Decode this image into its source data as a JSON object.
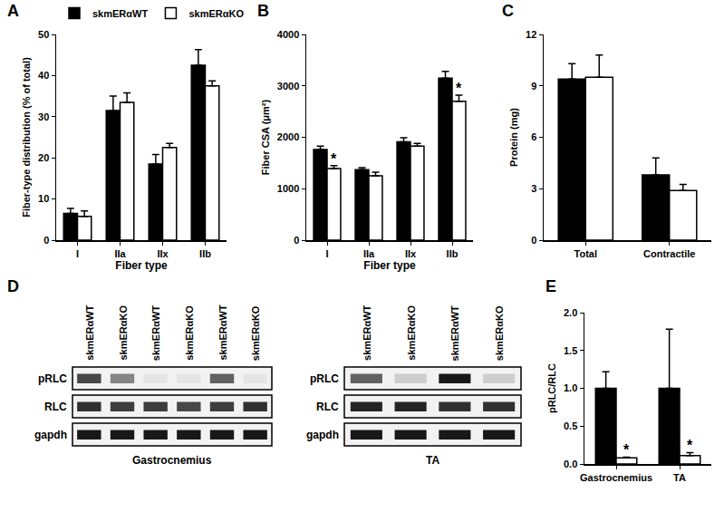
{
  "chart_data": [
    {
      "panel": "A",
      "type": "bar",
      "categories": [
        "I",
        "IIa",
        "IIx",
        "IIb"
      ],
      "x_label": "Fiber type",
      "y_label": "Fiber-type distribution (% of total)",
      "series": [
        {
          "name": "skmERαWT",
          "color": "#000000",
          "values": [
            6.5,
            31.5,
            18.5,
            42.5
          ],
          "errors": [
            1.2,
            3.5,
            2.3,
            3.8
          ]
        },
        {
          "name": "skmERαKO",
          "color": "#ffffff",
          "values": [
            5.8,
            33.5,
            22.5,
            37.5
          ],
          "errors": [
            1.3,
            2.3,
            1.0,
            1.2
          ]
        }
      ],
      "ylim": [
        0,
        50
      ],
      "yticks": [
        0,
        10,
        20,
        30,
        40,
        50
      ],
      "legend": "top left"
    },
    {
      "panel": "B",
      "type": "bar",
      "categories": [
        "I",
        "IIa",
        "IIx",
        "IIb"
      ],
      "x_label": "Fiber type",
      "y_label": "Fiber CSA (μm²)",
      "series": [
        {
          "name": "skmERαWT",
          "color": "#000000",
          "values": [
            1760,
            1370,
            1910,
            3150
          ],
          "errors": [
            70,
            40,
            80,
            130
          ]
        },
        {
          "name": "skmERαKO",
          "color": "#ffffff",
          "values": [
            1390,
            1250,
            1830,
            2700
          ],
          "errors": [
            60,
            70,
            50,
            120
          ]
        }
      ],
      "ylim": [
        0,
        4000
      ],
      "yticks": [
        0,
        1000,
        2000,
        3000,
        4000
      ],
      "annotations": [
        {
          "category": "I",
          "series": "skmERαKO",
          "text": "*"
        },
        {
          "category": "IIb",
          "series": "skmERαKO",
          "text": "*"
        }
      ]
    },
    {
      "panel": "C",
      "type": "bar",
      "categories": [
        "Total",
        "Contractile"
      ],
      "y_label": "Protein (mg)",
      "series": [
        {
          "name": "skmERαWT",
          "color": "#000000",
          "values": [
            9.4,
            3.8
          ],
          "errors": [
            0.9,
            1.0
          ]
        },
        {
          "name": "skmERαKO",
          "color": "#ffffff",
          "values": [
            9.5,
            2.9
          ],
          "errors": [
            1.3,
            0.35
          ]
        }
      ],
      "ylim": [
        0,
        12
      ],
      "yticks": [
        0,
        3,
        6,
        9,
        12
      ]
    },
    {
      "panel": "E",
      "type": "bar",
      "categories": [
        "Gastrocnemius",
        "TA"
      ],
      "y_label": "pRLC/RLC",
      "series": [
        {
          "name": "skmERαWT",
          "color": "#000000",
          "values": [
            1.0,
            1.0
          ],
          "errors": [
            0.22,
            0.78
          ]
        },
        {
          "name": "skmERαKO",
          "color": "#ffffff",
          "values": [
            0.08,
            0.11
          ],
          "errors": [
            0.01,
            0.04
          ]
        }
      ],
      "ylim": [
        0,
        2.0
      ],
      "yticks": [
        {
          "value": 0,
          "label": "0.0"
        },
        {
          "value": 0.5,
          "label": "0.5"
        },
        {
          "value": 1.0,
          "label": "1.0"
        },
        {
          "value": 1.5,
          "label": "1.5"
        },
        {
          "value": 2.0,
          "label": "2.0"
        }
      ],
      "annotations": [
        {
          "category": "Gastrocnemius",
          "series": "skmERαKO",
          "text": "*"
        },
        {
          "category": "TA",
          "series": "skmERαKO",
          "text": "*"
        }
      ]
    }
  ],
  "blots": {
    "panel": "D",
    "rows": [
      "pRLC",
      "RLC",
      "gapdh"
    ],
    "items": [
      {
        "label": "Gastrocnemius",
        "lanes": [
          "skmERαWT",
          "skmERαKO",
          "skmERαWT",
          "skmERαKO",
          "skmERαWT",
          "skmERαKO"
        ],
        "bands": {
          "pRLC": [
            0.7,
            0.45,
            0.05,
            0.05,
            0.6,
            0.05
          ],
          "RLC": [
            0.8,
            0.75,
            0.75,
            0.7,
            0.75,
            0.8
          ],
          "gapdh": [
            0.9,
            0.9,
            0.9,
            0.9,
            0.9,
            0.9
          ]
        }
      },
      {
        "label": "TA",
        "lanes": [
          "skmERαWT",
          "skmERαKO",
          "skmERαWT",
          "skmERαKO"
        ],
        "bands": {
          "pRLC": [
            0.6,
            0.15,
            0.9,
            0.15
          ],
          "RLC": [
            0.85,
            0.85,
            0.8,
            0.8
          ],
          "gapdh": [
            0.9,
            0.9,
            0.9,
            0.9
          ]
        }
      }
    ]
  }
}
